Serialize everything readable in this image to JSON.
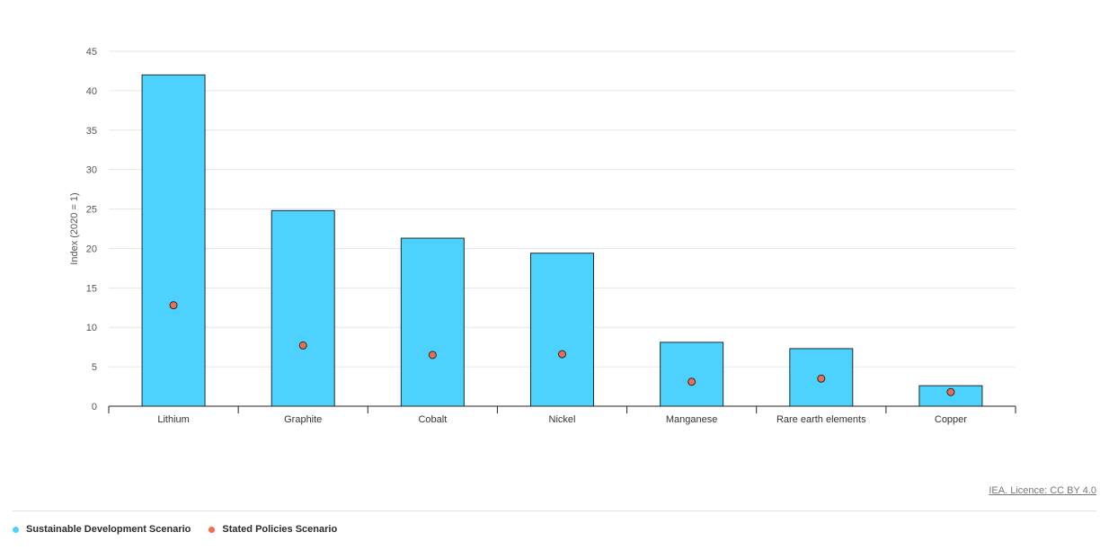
{
  "chart_data": {
    "type": "bar",
    "categories": [
      "Lithium",
      "Graphite",
      "Cobalt",
      "Nickel",
      "Manganese",
      "Rare earth elements",
      "Copper"
    ],
    "series": [
      {
        "name": "Sustainable Development Scenario",
        "kind": "bar",
        "color": "#4dd2ff",
        "values": [
          42,
          24.8,
          21.3,
          19.4,
          8.1,
          7.3,
          2.6
        ]
      },
      {
        "name": "Stated Policies Scenario",
        "kind": "point",
        "color": "#f26d4f",
        "values": [
          12.8,
          7.7,
          6.5,
          6.6,
          3.1,
          3.5,
          1.8
        ]
      }
    ],
    "ylabel": "Index (2020 = 1)",
    "ylim": [
      0,
      45
    ],
    "yticks": [
      0,
      5,
      10,
      15,
      20,
      25,
      30,
      35,
      40,
      45
    ],
    "grid": true,
    "legend_position": "bottom-left"
  },
  "footer": {
    "licence": "IEA. Licence: CC BY 4.0"
  }
}
